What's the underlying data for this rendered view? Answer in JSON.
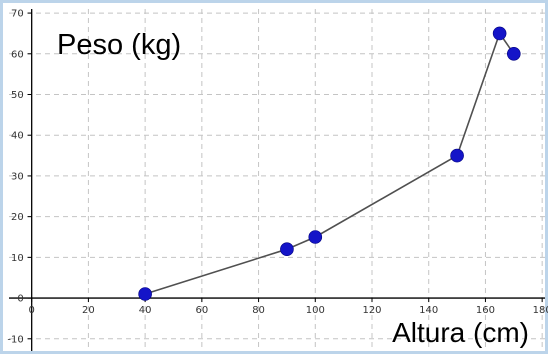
{
  "chart_data": {
    "type": "line",
    "ylabel": "Peso (kg)",
    "xlabel": "Altura (cm)",
    "x": [
      40,
      90,
      100,
      150,
      165,
      170
    ],
    "y": [
      1,
      12,
      15,
      35,
      65,
      60
    ],
    "xlim": [
      -8,
      181
    ],
    "ylim": [
      -13,
      71
    ],
    "x_ticks": [
      0,
      20,
      40,
      60,
      80,
      100,
      120,
      140,
      160,
      180
    ],
    "y_ticks": [
      -10,
      0,
      10,
      20,
      30,
      40,
      50,
      60,
      70
    ],
    "grid": true,
    "colors": {
      "marker": "#1414c8",
      "line": "#505050",
      "grid": "#c4c4c4",
      "axis": "#000000",
      "frame": "#bcd4ea"
    }
  }
}
